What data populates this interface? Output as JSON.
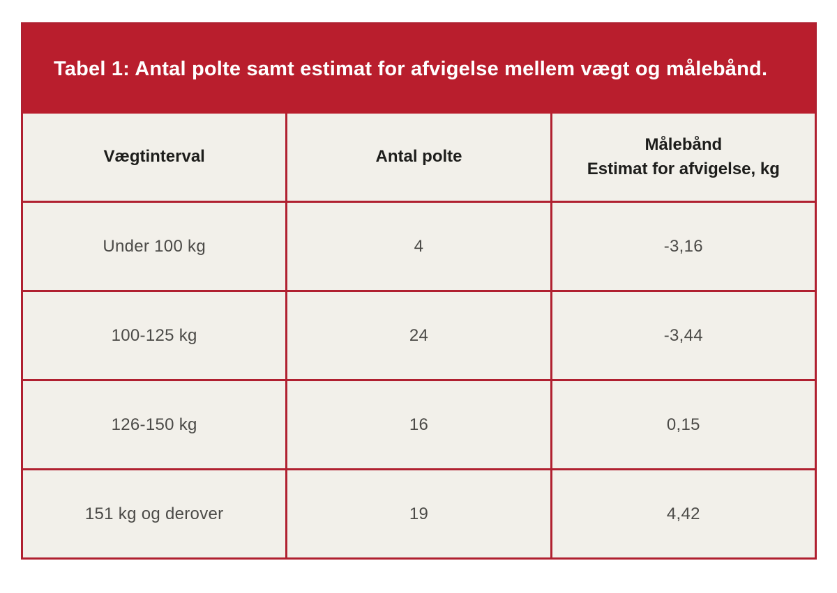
{
  "figure": {
    "title": "Tabel 1: Antal polte samt estimat for afvigelse mellem vægt og målebånd."
  },
  "table": {
    "headers": {
      "interval": "Vægtinterval",
      "count": "Antal polte",
      "deviation": "Målebånd\nEstimat for afvigelse, kg"
    },
    "rows": [
      {
        "interval": "Under 100 kg",
        "count": "4",
        "deviation": "-3,16"
      },
      {
        "interval": "100-125 kg",
        "count": "24",
        "deviation": "-3,44"
      },
      {
        "interval": "126-150 kg",
        "count": "16",
        "deviation": "0,15"
      },
      {
        "interval": "151 kg og derover",
        "count": "19",
        "deviation": "4,42"
      }
    ]
  },
  "colors": {
    "banner_red": "#b91e2d",
    "grid_line_red": "#b02030",
    "cell_background": "#f2f0ea",
    "page_background": "#ffffff",
    "title_text": "#ffffff",
    "header_text": "#1d1d1b",
    "body_text": "#4b4a47"
  },
  "chart_data": {
    "type": "table",
    "title": "Tabel 1: Antal polte samt estimat for afvigelse mellem vægt og målebånd.",
    "columns": [
      "Vægtinterval",
      "Antal polte",
      "Målebånd – Estimat for afvigelse, kg"
    ],
    "rows": [
      [
        "Under 100 kg",
        4,
        -3.16
      ],
      [
        "100-125 kg",
        24,
        -3.44
      ],
      [
        "126-150 kg",
        16,
        0.15
      ],
      [
        "151 kg og derover",
        19,
        4.42
      ]
    ],
    "layout_hints": {
      "header_banner": true,
      "grid": true,
      "column_alignment": "center"
    }
  }
}
